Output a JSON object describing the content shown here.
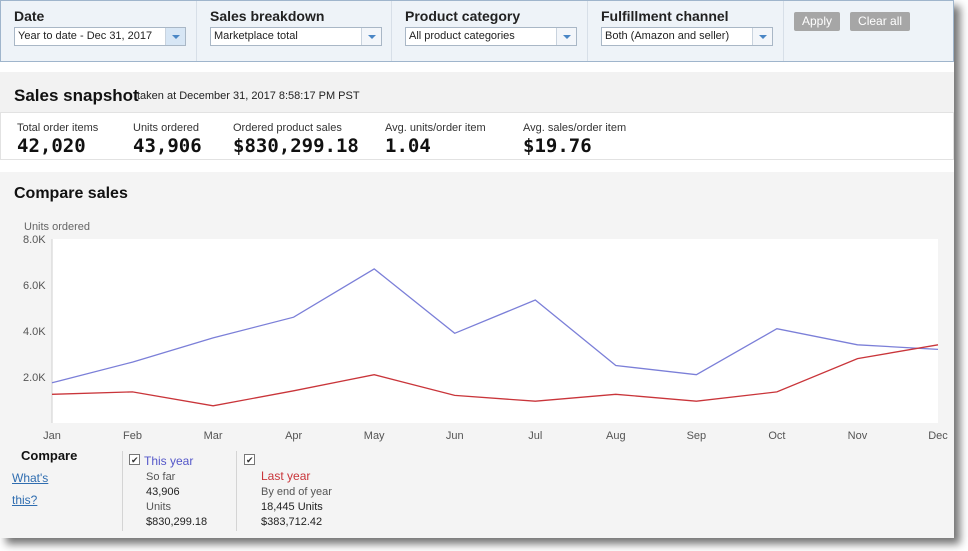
{
  "filters": [
    {
      "label": "Date",
      "value": "Year to date - Dec 31, 2017"
    },
    {
      "label": "Sales breakdown",
      "value": "Marketplace total"
    },
    {
      "label": "Product category",
      "value": "All product categories"
    },
    {
      "label": "Fulfillment channel",
      "value": "Both (Amazon and seller)"
    }
  ],
  "buttons": {
    "apply": "Apply",
    "clear": "Clear all"
  },
  "snapshot": {
    "title": "Sales snapshot",
    "subtitle": "taken at December 31, 2017 8:58:17 PM PST",
    "metrics": [
      {
        "label": "Total order items",
        "value": "42,020"
      },
      {
        "label": "Units ordered",
        "value": "43,906"
      },
      {
        "label": "Ordered product sales",
        "value": "$830,299.18"
      },
      {
        "label": "Avg. units/order item",
        "value": "1.04"
      },
      {
        "label": "Avg. sales/order item",
        "value": "$19.76"
      }
    ]
  },
  "compare": {
    "title": "Compare sales",
    "compare_label": "Compare",
    "whats_this": "What's this?",
    "legend": {
      "this_year": {
        "name": "This year",
        "line1": "So far",
        "line2": "43,906",
        "line3": "Units",
        "line4": "$830,299.18",
        "color": "#7b7fd8"
      },
      "last_year": {
        "name": "Last year",
        "line1": "By end of year",
        "line2": "18,445 Units",
        "line3": "$383,712.42",
        "color": "#c9353a"
      }
    }
  },
  "chart_data": {
    "type": "line",
    "ylabel": "Units ordered",
    "x": [
      "Jan",
      "Feb",
      "Mar",
      "Apr",
      "May",
      "Jun",
      "Jul",
      "Aug",
      "Sep",
      "Oct",
      "Nov",
      "Dec"
    ],
    "y_ticks": [
      "2.0K",
      "4.0K",
      "6.0K",
      "8.0K"
    ],
    "ylim": [
      0,
      8000
    ],
    "grid": false,
    "series": [
      {
        "name": "This year",
        "color": "#7b7fd8",
        "values": [
          1750,
          2650,
          3700,
          4600,
          6700,
          3900,
          5350,
          2500,
          2100,
          4100,
          3400,
          3200
        ]
      },
      {
        "name": "Last year",
        "color": "#c9353a",
        "values": [
          1250,
          1350,
          750,
          1400,
          2100,
          1200,
          950,
          1250,
          950,
          1350,
          2800,
          3400
        ]
      }
    ]
  }
}
